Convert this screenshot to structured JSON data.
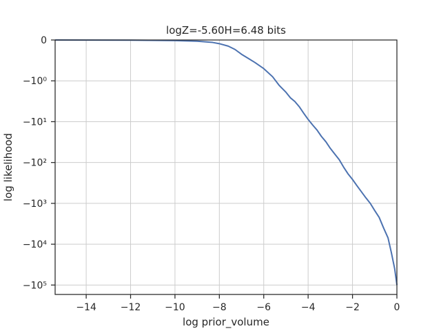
{
  "chart_data": {
    "type": "line",
    "title": "logZ=-5.60H=6.48 bits",
    "xlabel": "log prior_volume",
    "ylabel": "log likelihood",
    "xlim": [
      -15.4,
      0
    ],
    "y_scale": "symlog",
    "y_linthresh": 1,
    "ylim": [
      0,
      -170000
    ],
    "grid": true,
    "x_ticks": [
      {
        "value": -14,
        "label": "−14"
      },
      {
        "value": -12,
        "label": "−12"
      },
      {
        "value": -10,
        "label": "−10"
      },
      {
        "value": -8,
        "label": "−8"
      },
      {
        "value": -6,
        "label": "−6"
      },
      {
        "value": -4,
        "label": "−4"
      },
      {
        "value": -2,
        "label": "−2"
      },
      {
        "value": 0,
        "label": "0"
      }
    ],
    "y_ticks": [
      {
        "value": 0,
        "label": "0"
      },
      {
        "value": -1,
        "label": "−10⁰"
      },
      {
        "value": -10,
        "label": "−10¹"
      },
      {
        "value": -100,
        "label": "−10²"
      },
      {
        "value": -1000,
        "label": "−10³"
      },
      {
        "value": -10000,
        "label": "−10⁴"
      },
      {
        "value": -100000,
        "label": "−10⁵"
      }
    ],
    "series": [
      {
        "color": "#4c72b0",
        "x": [
          -15.4,
          -14,
          -12,
          -10,
          -9,
          -8.3,
          -8,
          -7.6,
          -7.3,
          -7,
          -6.7,
          -6.4,
          -6,
          -5.6,
          -5.3,
          -5,
          -4.8,
          -4.6,
          -4.4,
          -4.2,
          -4,
          -3.8,
          -3.6,
          -3.4,
          -3.2,
          -3,
          -2.8,
          -2.6,
          -2.4,
          -2.2,
          -2,
          -1.8,
          -1.6,
          -1.4,
          -1.2,
          -1,
          -0.8,
          -0.6,
          -0.4,
          -0.25,
          -0.1,
          0
        ],
        "y": [
          -0.001,
          -0.002,
          -0.005,
          -0.015,
          -0.03,
          -0.06,
          -0.09,
          -0.15,
          -0.23,
          -0.35,
          -0.45,
          -0.55,
          -0.7,
          -0.9,
          -1.3,
          -1.9,
          -2.6,
          -3.2,
          -4.3,
          -6.2,
          -8.8,
          -12,
          -16,
          -23,
          -31,
          -45,
          -62,
          -85,
          -130,
          -190,
          -260,
          -370,
          -520,
          -730,
          -1000,
          -1500,
          -2200,
          -4000,
          -7000,
          -16000,
          -40000,
          -100000
        ]
      }
    ]
  }
}
